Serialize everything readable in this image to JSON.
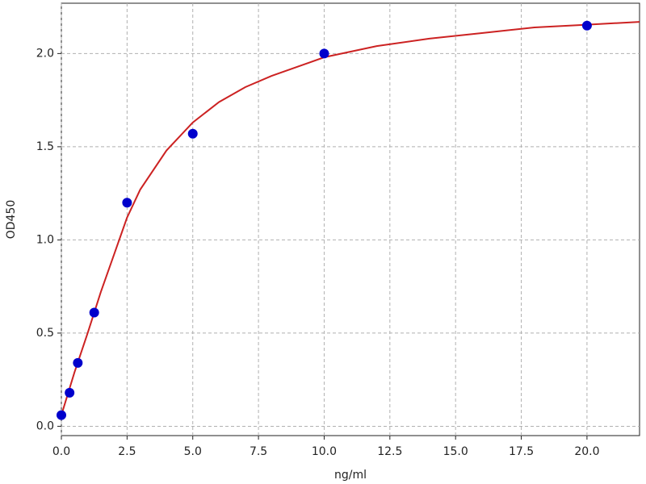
{
  "chart_data": {
    "type": "scatter",
    "x_label": "ng/ml",
    "y_label": "OD450",
    "series": [
      {
        "type": "line",
        "color": "#cc2222",
        "x": [
          0,
          0.5,
          1,
          1.5,
          2,
          2.5,
          3,
          4,
          5,
          6,
          7,
          8,
          10,
          12,
          14,
          16,
          18,
          20,
          22
        ],
        "values": [
          0.06,
          0.29,
          0.5,
          0.72,
          0.92,
          1.12,
          1.27,
          1.48,
          1.63,
          1.74,
          1.82,
          1.88,
          1.98,
          2.04,
          2.08,
          2.11,
          2.14,
          2.155,
          2.17
        ]
      },
      {
        "type": "scatter",
        "color": "#0000cc",
        "x": [
          0,
          0.3125,
          0.625,
          1.25,
          2.5,
          5,
          10,
          20
        ],
        "values": [
          0.06,
          0.18,
          0.34,
          0.61,
          1.2,
          1.57,
          2.0,
          2.15
        ]
      }
    ],
    "xlim": [
      0,
      22
    ],
    "ylim": [
      -0.05,
      2.27
    ],
    "xticks": [
      {
        "value": 0,
        "label": "0.0"
      },
      {
        "value": 2.5,
        "label": "2.5"
      },
      {
        "value": 5,
        "label": "5.0"
      },
      {
        "value": 7.5,
        "label": "7.5"
      },
      {
        "value": 10,
        "label": "10.0"
      },
      {
        "value": 12.5,
        "label": "12.5"
      },
      {
        "value": 15,
        "label": "15.0"
      },
      {
        "value": 17.5,
        "label": "17.5"
      },
      {
        "value": 20,
        "label": "20.0"
      }
    ],
    "yticks": [
      {
        "value": 0,
        "label": "0.0"
      },
      {
        "value": 0.5,
        "label": "0.5"
      },
      {
        "value": 1,
        "label": "1.0"
      },
      {
        "value": 1.5,
        "label": "1.5"
      },
      {
        "value": 2,
        "label": "2.0"
      }
    ],
    "grid": true
  }
}
